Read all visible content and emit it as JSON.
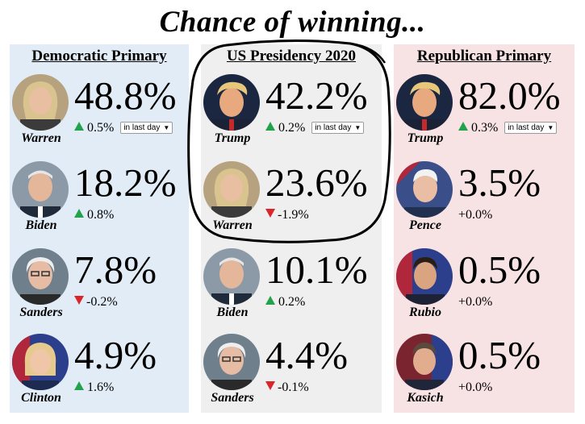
{
  "title": "Chance of winning...",
  "columns": [
    {
      "key": "dem",
      "header": "Democratic Primary",
      "color": "#e2ecf7",
      "candidates": [
        {
          "name": "Warren",
          "pct": "48.8%",
          "change": "0.5%",
          "direction": "up",
          "period": "in last day"
        },
        {
          "name": "Biden",
          "pct": "18.2%",
          "change": "0.8%",
          "direction": "up"
        },
        {
          "name": "Sanders",
          "pct": "7.8%",
          "change": "-0.2%",
          "direction": "down"
        },
        {
          "name": "Clinton",
          "pct": "4.9%",
          "change": "1.6%",
          "direction": "up"
        }
      ]
    },
    {
      "key": "pres",
      "header": "US Presidency 2020",
      "color": "#efefef",
      "candidates": [
        {
          "name": "Trump",
          "pct": "42.2%",
          "change": "0.2%",
          "direction": "up",
          "period": "in last day"
        },
        {
          "name": "Warren",
          "pct": "23.6%",
          "change": "-1.9%",
          "direction": "down"
        },
        {
          "name": "Biden",
          "pct": "10.1%",
          "change": "0.2%",
          "direction": "up"
        },
        {
          "name": "Sanders",
          "pct": "4.4%",
          "change": "-0.1%",
          "direction": "down"
        }
      ]
    },
    {
      "key": "rep",
      "header": "Republican Primary",
      "color": "#f7e2e4",
      "candidates": [
        {
          "name": "Trump",
          "pct": "82.0%",
          "change": "0.3%",
          "direction": "up",
          "period": "in last day"
        },
        {
          "name": "Pence",
          "pct": "3.5%",
          "change": "+0.0%",
          "direction": "none"
        },
        {
          "name": "Rubio",
          "pct": "0.5%",
          "change": "+0.0%",
          "direction": "none"
        },
        {
          "name": "Kasich",
          "pct": "0.5%",
          "change": "+0.0%",
          "direction": "none"
        }
      ]
    }
  ],
  "colors": {
    "up": "#22a24a",
    "down": "#d9262b",
    "annotation": "#000000"
  },
  "annotation": {
    "type": "hand-drawn-circle",
    "around": "US Presidency 2020 top two candidates"
  }
}
